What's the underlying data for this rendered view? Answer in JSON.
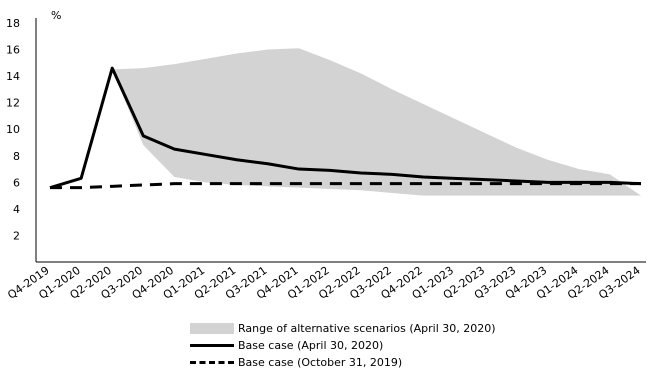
{
  "chart_data": {
    "type": "line",
    "ylabel": "%",
    "ylim": [
      0,
      18
    ],
    "yticks": [
      2,
      4,
      6,
      8,
      10,
      12,
      14,
      16,
      18
    ],
    "categories": [
      "Q4-2019",
      "Q1-2020",
      "Q2-2020",
      "Q3-2020",
      "Q4-2020",
      "Q1-2021",
      "Q2-2021",
      "Q3-2021",
      "Q4-2021",
      "Q1-2022",
      "Q2-2022",
      "Q3-2022",
      "Q4-2022",
      "Q1-2023",
      "Q2-2023",
      "Q3-2023",
      "Q4-2023",
      "Q1-2024",
      "Q2-2024",
      "Q3-2024"
    ],
    "band": {
      "name": "Range of alternative scenarios (April 30, 2020)",
      "color": "#d3d3d3",
      "lower": [
        null,
        null,
        14.5,
        8.8,
        6.4,
        6.0,
        5.8,
        5.7,
        5.6,
        5.5,
        5.4,
        5.2,
        5.0,
        5.0,
        5.0,
        5.0,
        5.0,
        5.0,
        5.0,
        5.0
      ],
      "upper": [
        null,
        null,
        14.5,
        14.6,
        14.9,
        15.3,
        15.7,
        16.0,
        16.1,
        15.2,
        14.2,
        13.0,
        11.9,
        10.8,
        9.7,
        8.6,
        7.7,
        7.0,
        6.6,
        null
      ]
    },
    "series": [
      {
        "name": "Base case (April 30, 2020)",
        "style": "solid",
        "color": "#000000",
        "values": [
          5.6,
          6.3,
          14.6,
          9.5,
          8.5,
          8.1,
          7.7,
          7.4,
          7.0,
          6.9,
          6.7,
          6.6,
          6.4,
          6.3,
          6.2,
          6.1,
          6.0,
          6.0,
          6.0,
          5.9
        ]
      },
      {
        "name": "Base case (October 31, 2019)",
        "style": "dashed",
        "color": "#000000",
        "values": [
          5.6,
          5.6,
          5.7,
          5.8,
          5.9,
          5.9,
          5.9,
          5.9,
          5.9,
          5.9,
          5.9,
          5.9,
          5.9,
          5.9,
          5.9,
          5.9,
          5.9,
          5.9,
          5.9,
          5.9
        ]
      }
    ],
    "grid": false,
    "legend_position": "bottom"
  }
}
